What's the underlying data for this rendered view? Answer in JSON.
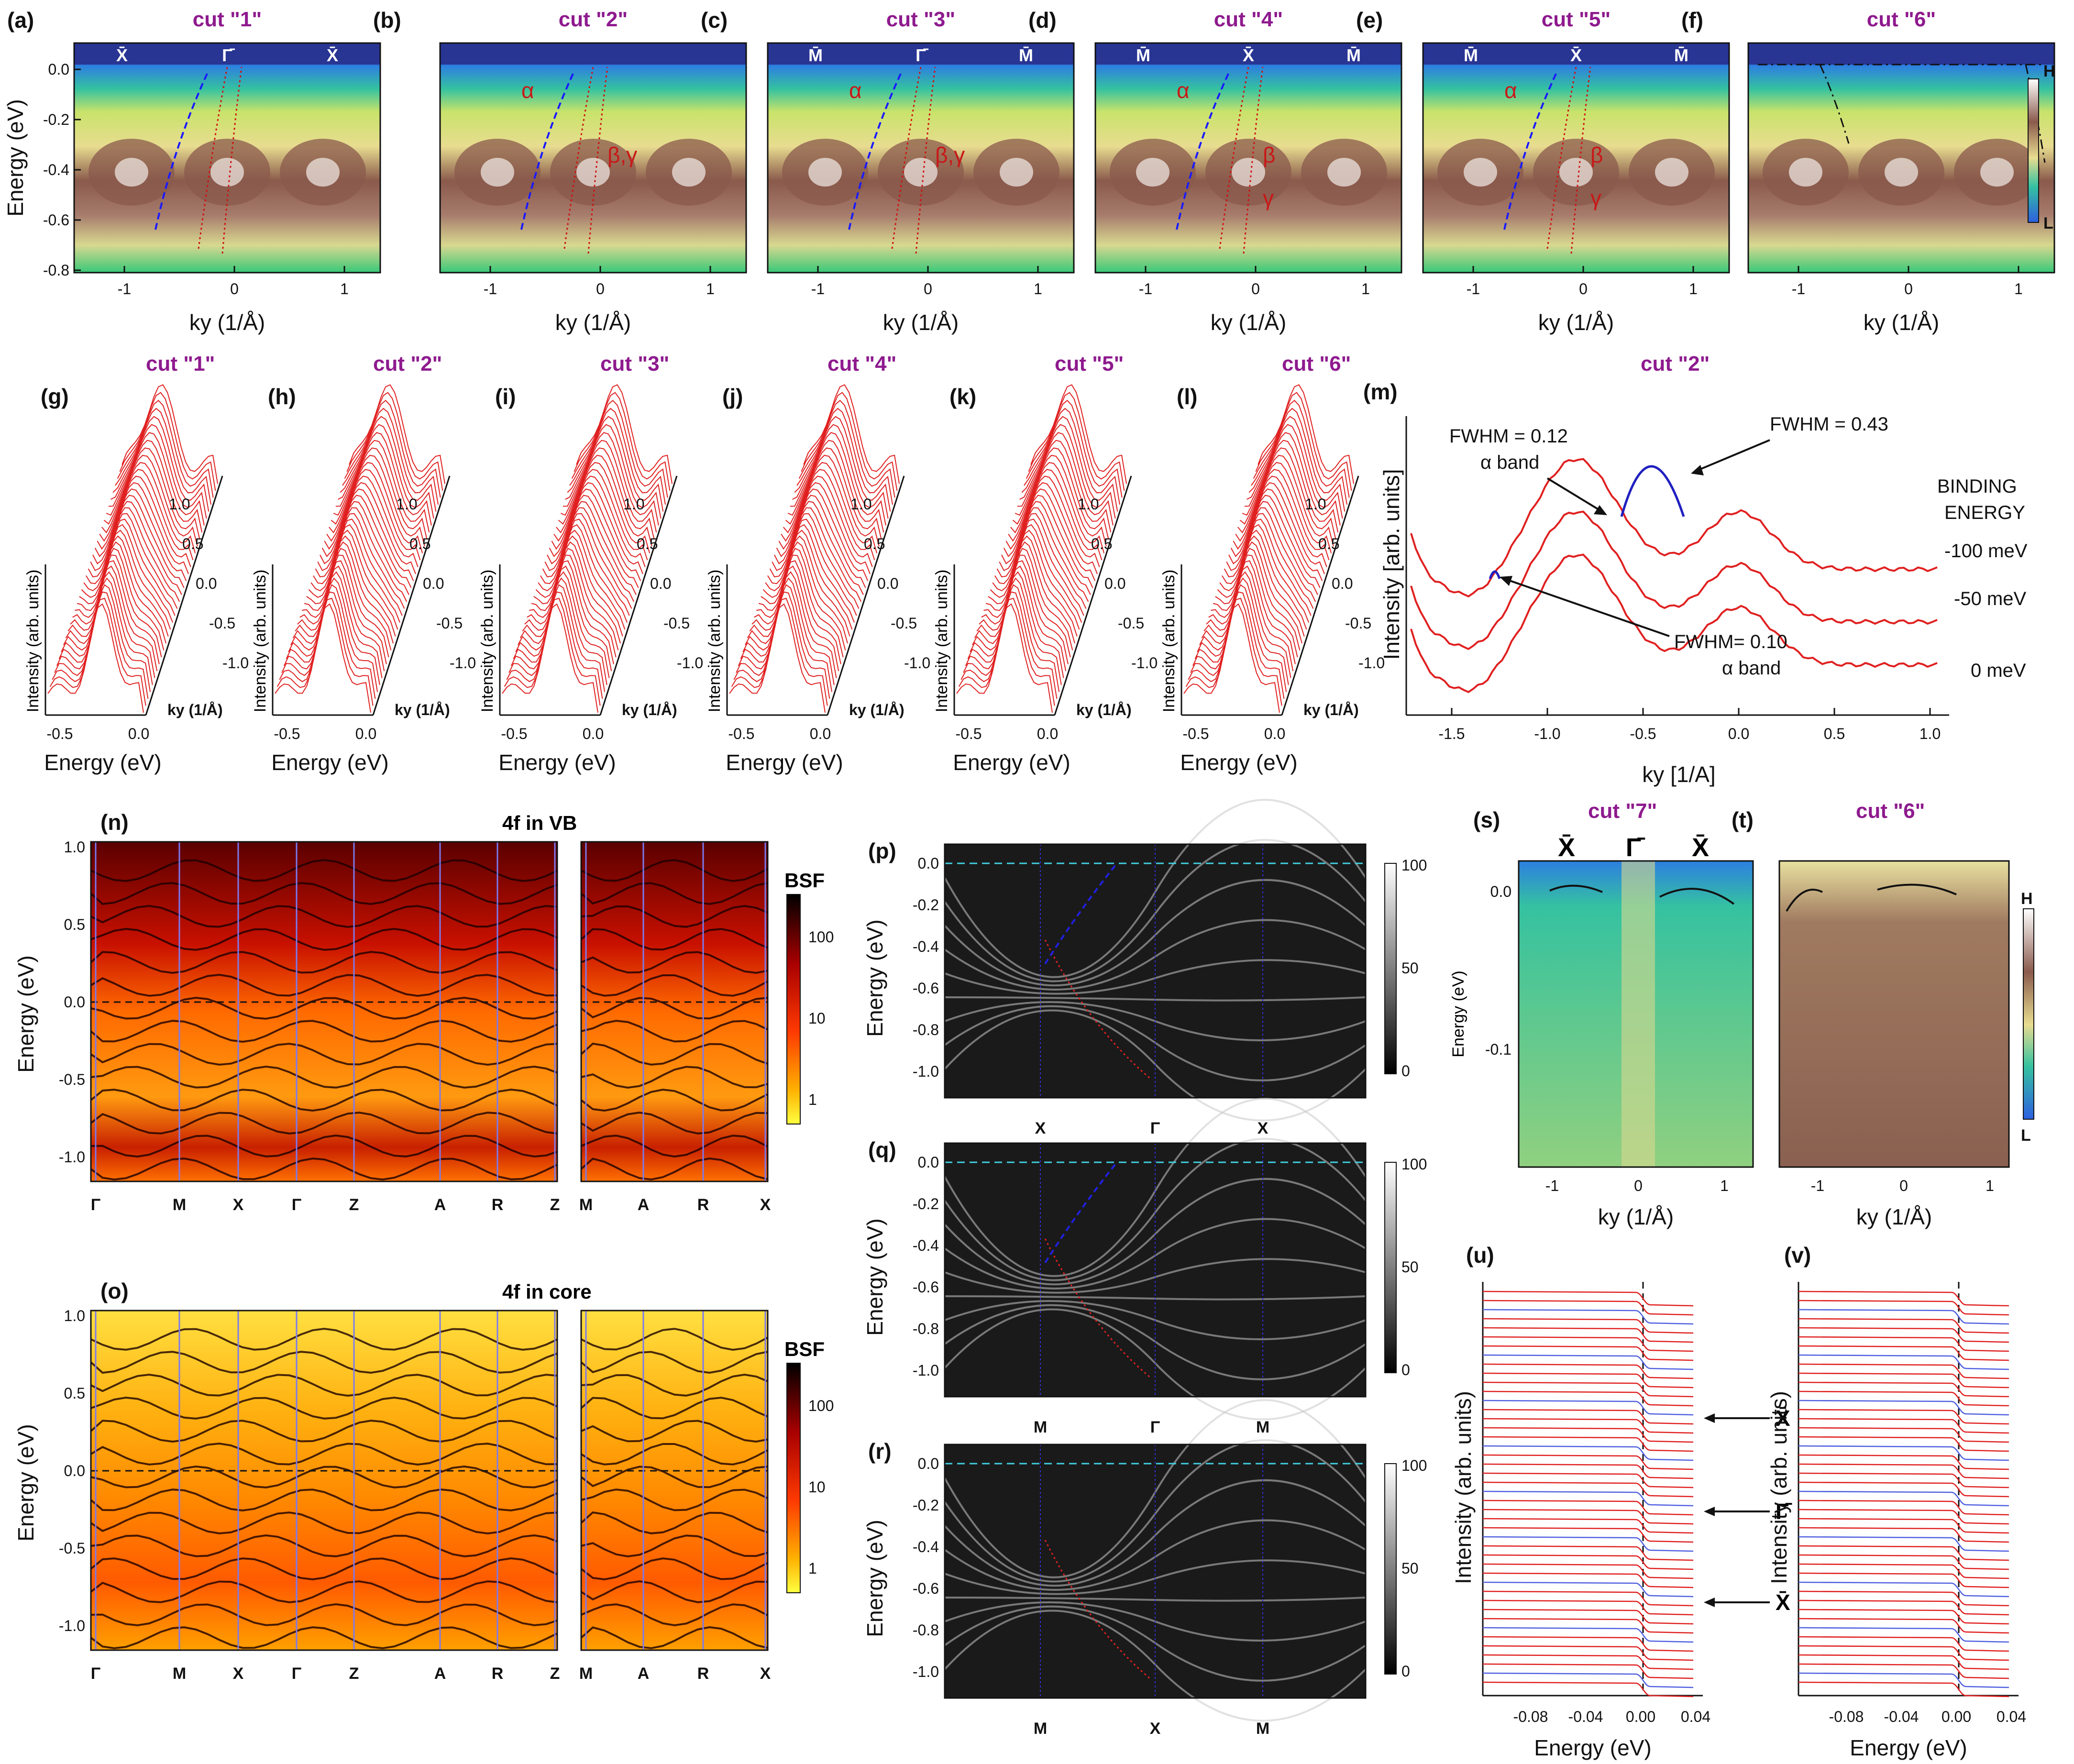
{
  "figure": {
    "top_row": {
      "panels": [
        {
          "id": "(a)",
          "cut": "cut \"1\"",
          "kpoints": [
            "X̄",
            "Γ̄",
            "X̄"
          ],
          "greek": []
        },
        {
          "id": "(b)",
          "cut": "cut \"2\"",
          "kpoints": [],
          "greek": [
            "α",
            "β,γ"
          ]
        },
        {
          "id": "(c)",
          "cut": "cut \"3\"",
          "kpoints": [
            "M̄",
            "Γ̄",
            "M̄"
          ],
          "greek": [
            "α",
            "β,γ"
          ]
        },
        {
          "id": "(d)",
          "cut": "cut \"4\"",
          "kpoints": [
            "M̄",
            "X̄",
            "M̄"
          ],
          "greek": [
            "α",
            "β",
            "γ"
          ]
        },
        {
          "id": "(e)",
          "cut": "cut \"5\"",
          "kpoints": [
            "M̄",
            "X̄",
            "M̄"
          ],
          "greek": [
            "α",
            "β",
            "γ"
          ]
        },
        {
          "id": "(f)",
          "cut": "cut \"6\"",
          "kpoints": [],
          "greek": []
        }
      ],
      "ylabel": "Energy (eV)",
      "yticks": [
        "0.0",
        "-0.2",
        "-0.4",
        "-0.6",
        "-0.8"
      ],
      "xlabel": "ky (1/Å)",
      "xticks": [
        "-1",
        "0",
        "1"
      ],
      "colorbar": {
        "high": "H",
        "low": "L"
      }
    },
    "waterfall_row": {
      "panels": [
        {
          "id": "(g)",
          "cut": "cut \"1\""
        },
        {
          "id": "(h)",
          "cut": "cut \"2\""
        },
        {
          "id": "(i)",
          "cut": "cut \"3\""
        },
        {
          "id": "(j)",
          "cut": "cut \"4\""
        },
        {
          "id": "(k)",
          "cut": "cut \"5\""
        },
        {
          "id": "(l)",
          "cut": "cut \"6\""
        }
      ],
      "ylabel": "Intensity (arb. units)",
      "xlabel": "Energy (eV)",
      "xticks": [
        "-0.5",
        "0.0"
      ],
      "ky_label": "ky (1/Å)",
      "ky_ticks": [
        "1.0",
        "0.5",
        "0.0",
        "-0.5",
        "-1.0"
      ]
    },
    "panel_m": {
      "id": "(m)",
      "cut": "cut \"2\"",
      "ylabel": "Intensity [arb. units]",
      "xlabel": "ky [1/A]",
      "xticks": [
        "-1.5",
        "-1.0",
        "-0.5",
        "0.0",
        "0.5",
        "1.0"
      ],
      "annotations": {
        "fwhm1": "FWHM = 0.12",
        "fwhm1_sub": "α band",
        "fwhm2": "FWHM = 0.43",
        "fwhm3": "FWHM= 0.10",
        "fwhm3_sub": "α band",
        "be_title1": "BINDING",
        "be_title2": "ENERGY",
        "be1": "-100 meV",
        "be2": "-50 meV",
        "be3": "0 meV"
      }
    },
    "calc_panels": [
      {
        "id": "(n)",
        "title": "4f in VB"
      },
      {
        "id": "(o)",
        "title": "4f in core"
      }
    ],
    "calc_common": {
      "ylabel": "Energy (eV)",
      "yticks": [
        "1.0",
        "0.5",
        "0.0",
        "-0.5",
        "-1.0"
      ],
      "path_left": [
        "Γ",
        "M",
        "X",
        "Γ",
        "Z",
        "A",
        "R",
        "Z"
      ],
      "path_right": [
        "M",
        "A",
        "R",
        "X"
      ],
      "cbar_title": "BSF",
      "cbar_ticks": [
        "100",
        "10",
        "1"
      ]
    },
    "bsf_panels": [
      {
        "id": "(p)",
        "kpath": [
          "X",
          "Γ",
          "X"
        ]
      },
      {
        "id": "(q)",
        "kpath": [
          "M",
          "Γ",
          "M"
        ]
      },
      {
        "id": "(r)",
        "kpath": [
          "M",
          "X",
          "M"
        ]
      }
    ],
    "bsf_common": {
      "ylabel": "Energy (eV)",
      "yticks": [
        "0.0",
        "-0.2",
        "-0.4",
        "-0.6",
        "-0.8",
        "-1.0"
      ],
      "cbar_ticks": [
        "100",
        "50",
        "0"
      ]
    },
    "panel_s": {
      "id": "(s)",
      "cut": "cut \"7\"",
      "kpoints": [
        "X̄",
        "Γ̄",
        "X̄"
      ],
      "yticks": [
        "0.0",
        "-0.1"
      ],
      "ylabel": "Energy (eV)"
    },
    "panel_t": {
      "id": "(t)",
      "cut": "cut \"6\""
    },
    "st_common": {
      "xlabel": "ky (1/Å)",
      "xticks": [
        "-1",
        "0",
        "1"
      ],
      "cbar_high": "H",
      "cbar_low": "L"
    },
    "panel_u": {
      "id": "(u)",
      "markers": [
        "X̄",
        "Γ̄",
        "X̄"
      ]
    },
    "panel_v": {
      "id": "(v)"
    },
    "uv_common": {
      "ylabel": "Intensity (arb. units)",
      "xlabel": "Energy (eV)",
      "xticks": [
        "-0.08",
        "-0.04",
        "0.00",
        "0.04"
      ]
    }
  }
}
